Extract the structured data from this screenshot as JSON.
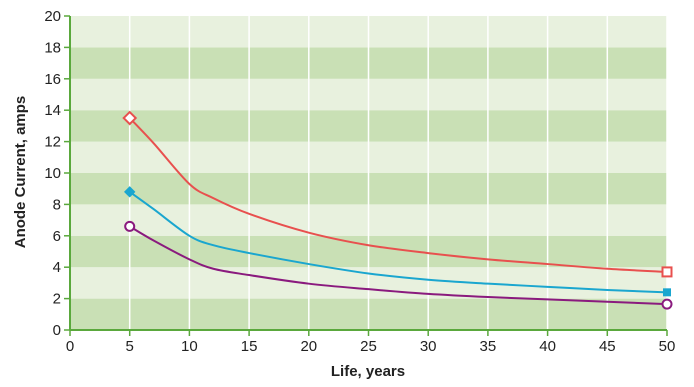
{
  "chart_data": {
    "type": "line",
    "title": "",
    "xlabel": "Life, years",
    "ylabel": "Anode Current, amps",
    "xlim": [
      0,
      50
    ],
    "ylim": [
      0,
      20
    ],
    "x_ticks": [
      "0",
      "5",
      "10",
      "15",
      "20",
      "25",
      "30",
      "35",
      "40",
      "45",
      "50"
    ],
    "y_ticks": [
      "0",
      "2",
      "4",
      "6",
      "8",
      "10",
      "12",
      "14",
      "16",
      "18",
      "20"
    ],
    "grid": true,
    "legend": "none",
    "band_colors": [
      "#c9e0b5",
      "#e8f1de"
    ],
    "axis_color": "#5aa83c",
    "series": [
      {
        "color": "#e8504e",
        "marker": "open-diamond",
        "x": [
          5,
          7,
          10,
          12,
          15,
          20,
          25,
          30,
          35,
          40,
          45,
          50
        ],
        "y": [
          13.5,
          11.9,
          9.3,
          8.4,
          7.4,
          6.2,
          5.4,
          4.9,
          4.5,
          4.2,
          3.9,
          3.7
        ]
      },
      {
        "color": "#1aa6cf",
        "marker": "filled-diamond-square",
        "x": [
          5,
          7,
          10,
          12,
          15,
          20,
          25,
          30,
          35,
          40,
          45,
          50
        ],
        "y": [
          8.8,
          7.7,
          6.0,
          5.4,
          4.9,
          4.2,
          3.6,
          3.2,
          2.95,
          2.75,
          2.55,
          2.4
        ]
      },
      {
        "color": "#8a1a7e",
        "marker": "open-circle",
        "x": [
          5,
          7,
          10,
          12,
          15,
          20,
          25,
          30,
          35,
          40,
          45,
          50
        ],
        "y": [
          6.6,
          5.7,
          4.5,
          3.9,
          3.5,
          2.95,
          2.6,
          2.3,
          2.1,
          1.95,
          1.8,
          1.65
        ]
      }
    ]
  }
}
